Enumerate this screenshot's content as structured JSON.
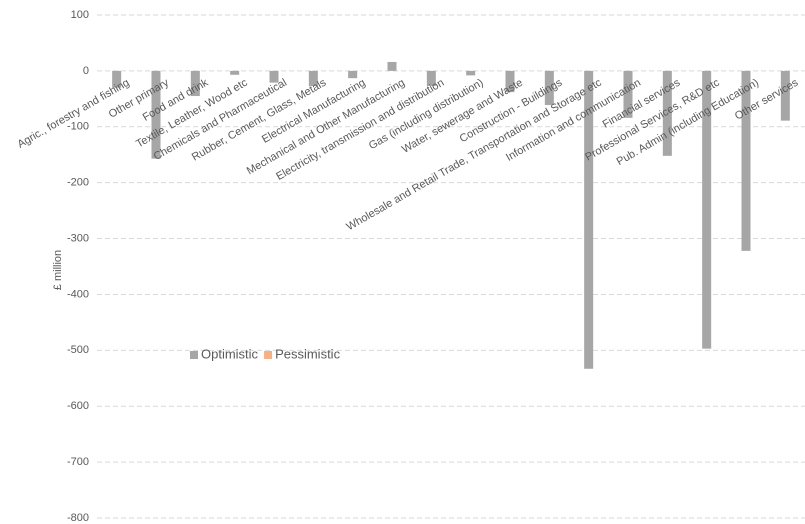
{
  "chart_data": {
    "type": "bar",
    "y_axis_label": "£ million",
    "categories": [
      "Agric., forestry and fishing",
      "Other primary",
      "Food and drink",
      "Textile, Leather, Wood etc",
      "Chemicals and Pharmaceutical",
      "Rubber, Cement, Glass, Metals",
      "Electrical Manufacturing",
      "Mechanical and Other Manufacturing",
      "Electricity, transmission and distribution",
      "Gas (including distribution)",
      "Water, sewerage and Waste",
      "Construction - Buildings",
      "Wholesale and Retail Trade, Transportation and Storage etc",
      "Information and communication",
      "Financial services",
      "Professional Services, R&D etc",
      "Pub. Admin (including Education)",
      "Other services"
    ],
    "series": [
      {
        "name": "Optimistic",
        "color": "#a6a6a6",
        "values": [
          -30,
          -157,
          -45,
          -7,
          -21,
          -27,
          -13,
          16,
          -27,
          -8,
          -38,
          -61,
          -533,
          -84,
          -152,
          -497,
          -322,
          -89
        ]
      },
      {
        "name": "Pessimistic",
        "color": "#f4b183",
        "values": [
          null,
          null,
          null,
          null,
          null,
          null,
          null,
          null,
          null,
          null,
          null,
          null,
          null,
          null,
          null,
          null,
          null,
          null
        ]
      }
    ],
    "ylim": [
      -800,
      100
    ],
    "yticks": [
      -800,
      -700,
      -600,
      -500,
      -400,
      -300,
      -200,
      -100,
      0,
      100
    ],
    "grid": true
  }
}
